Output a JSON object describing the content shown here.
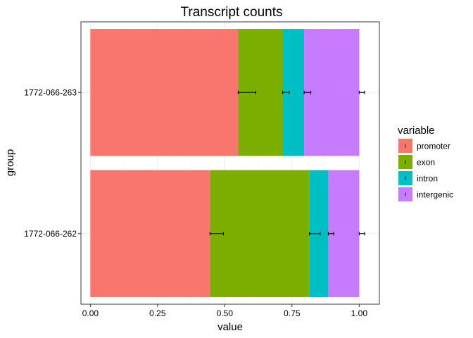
{
  "chart_data": {
    "type": "bar",
    "orientation": "horizontal",
    "stacked": true,
    "title": "Transcript counts",
    "xlabel": "value",
    "ylabel": "group",
    "xlim": [
      -0.035,
      1.075
    ],
    "x_ticks": [
      "0.00",
      "0.25",
      "0.50",
      "0.75",
      "1.00"
    ],
    "x_tick_values": [
      0,
      0.25,
      0.5,
      0.75,
      1.0
    ],
    "categories": [
      "1772-066-263",
      "1772-066-262"
    ],
    "series": [
      {
        "name": "promoter",
        "color": "#F8766D",
        "values": [
          0.55,
          0.445
        ],
        "error_ends": [
          0.615,
          0.495
        ]
      },
      {
        "name": "exon",
        "color": "#7CAE00",
        "values": [
          0.165,
          0.37
        ],
        "error_ends": [
          0.74,
          0.855
        ]
      },
      {
        "name": "intron",
        "color": "#00BFC4",
        "values": [
          0.08,
          0.07
        ],
        "error_ends": [
          0.82,
          0.905
        ]
      },
      {
        "name": "intergenic",
        "color": "#C77CFF",
        "values": [
          0.205,
          0.115
        ],
        "error_ends": [
          1.02,
          1.02
        ]
      }
    ],
    "legend": {
      "title": "variable",
      "position": "right"
    },
    "grid": true,
    "theme": "bw"
  }
}
